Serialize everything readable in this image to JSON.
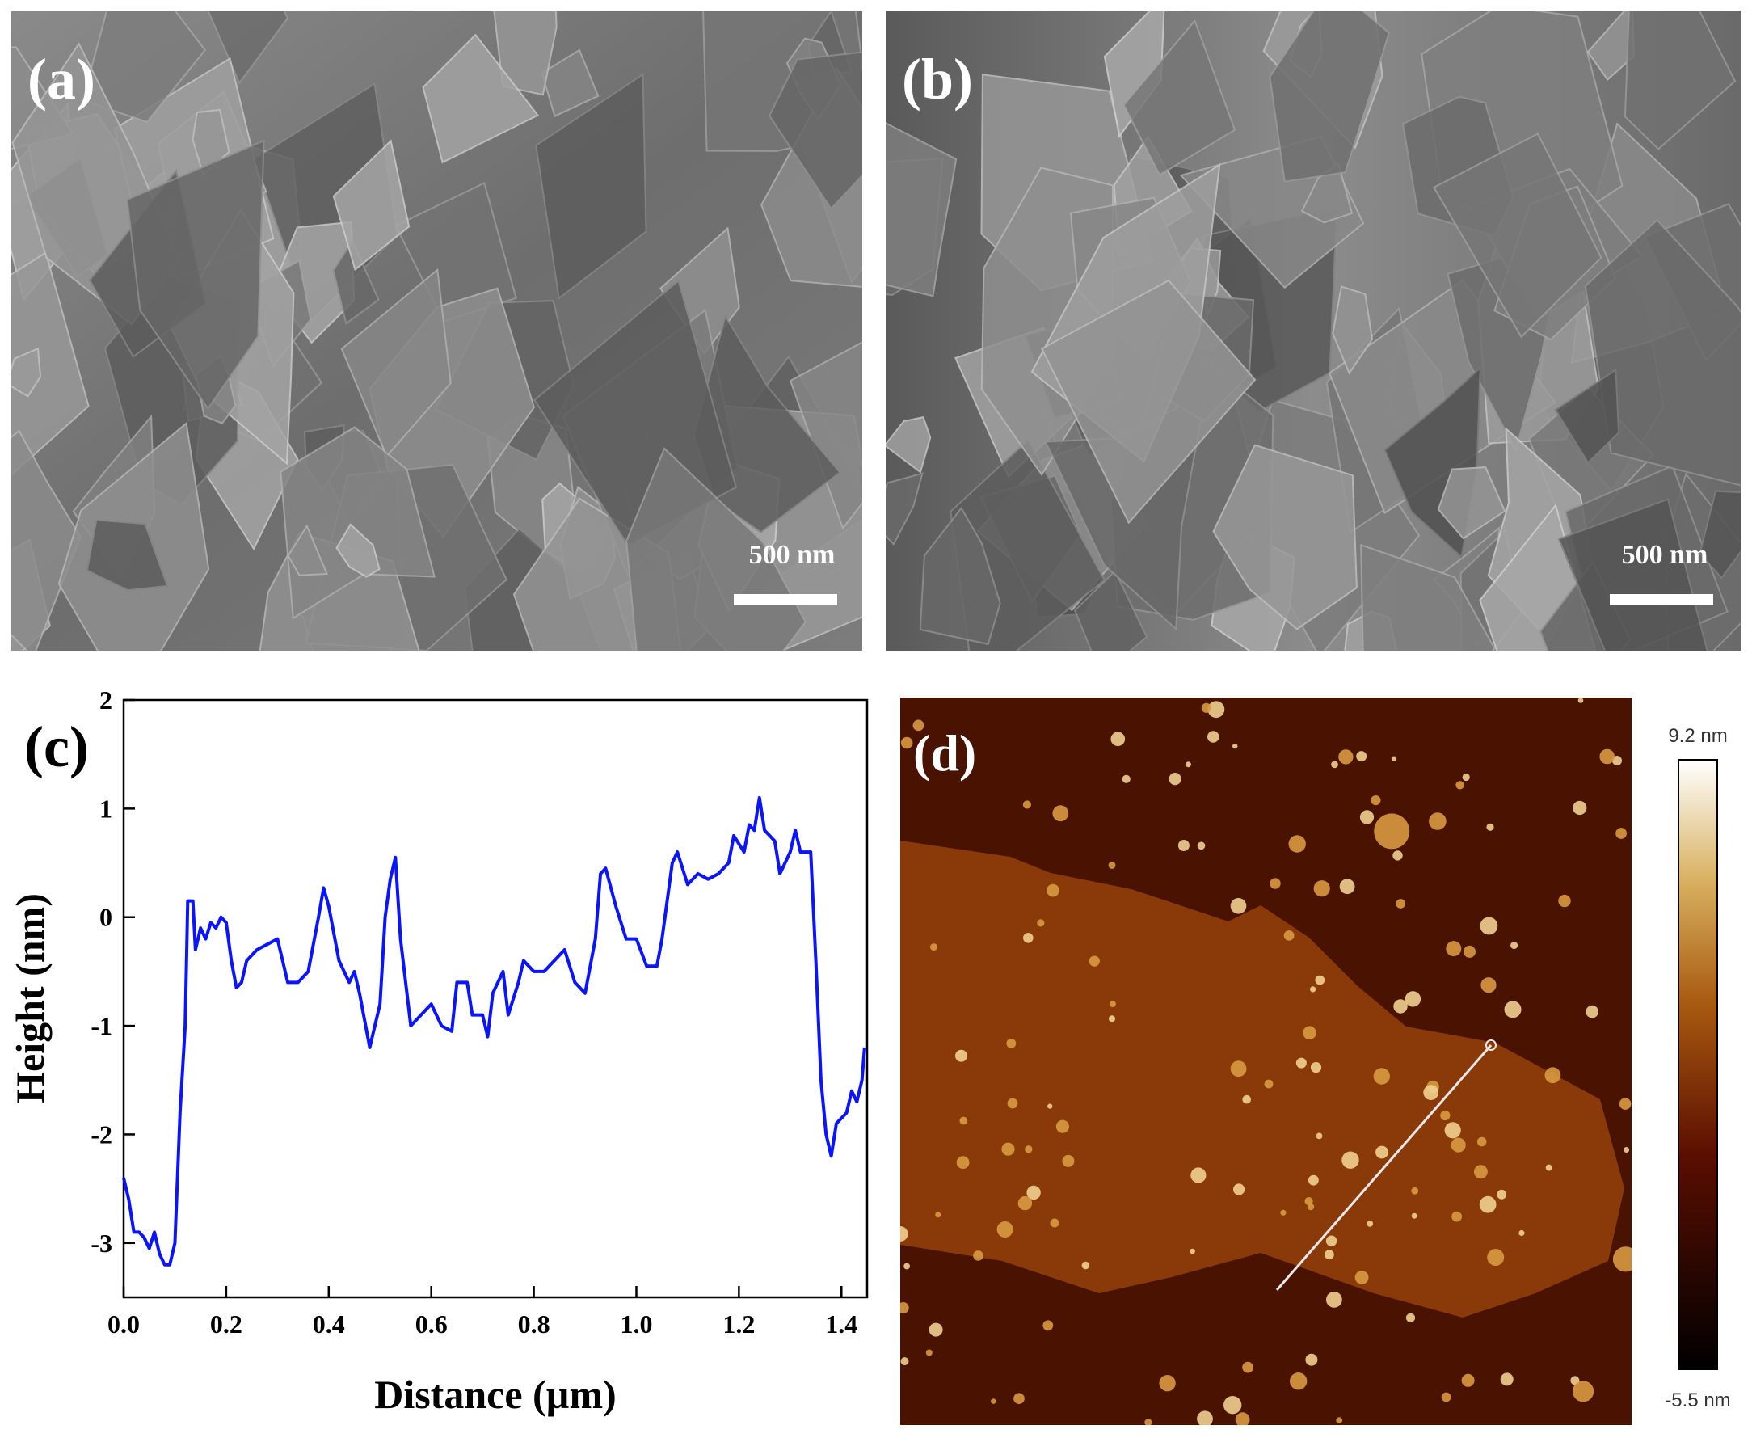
{
  "panels": {
    "a": {
      "label": "(a)",
      "scale_bar": "500 nm"
    },
    "b": {
      "label": "(b)",
      "scale_bar": "500 nm"
    },
    "d": {
      "label": "(d)",
      "colorbar_max": "9.2 nm",
      "colorbar_min": "-5.5 nm"
    }
  },
  "chart_data": {
    "type": "line",
    "panel_label": "(c)",
    "x_label": "Distance (µm)",
    "y_label": "Height (nm)",
    "xlim": [
      0,
      1.45
    ],
    "ylim": [
      -3.5,
      2
    ],
    "xticks": [
      {
        "value": 0,
        "label": "0.0"
      },
      0.2,
      0.4,
      0.6,
      0.8,
      {
        "value": 1,
        "label": "1.0"
      },
      1.2,
      1.4
    ],
    "yticks": [
      -3,
      -2,
      -1,
      0,
      1,
      2
    ],
    "color": "#0a14ff",
    "x": [
      0,
      0.01,
      0.02,
      0.03,
      0.04,
      0.05,
      0.06,
      0.07,
      0.08,
      0.09,
      0.1,
      0.11,
      0.12,
      0.125,
      0.135,
      0.14,
      0.15,
      0.16,
      0.17,
      0.18,
      0.19,
      0.2,
      0.21,
      0.22,
      0.23,
      0.24,
      0.26,
      0.28,
      0.3,
      0.32,
      0.34,
      0.36,
      0.38,
      0.39,
      0.4,
      0.42,
      0.44,
      0.45,
      0.46,
      0.48,
      0.5,
      0.51,
      0.52,
      0.53,
      0.54,
      0.56,
      0.58,
      0.6,
      0.62,
      0.64,
      0.65,
      0.67,
      0.68,
      0.7,
      0.71,
      0.72,
      0.74,
      0.75,
      0.77,
      0.78,
      0.8,
      0.82,
      0.84,
      0.86,
      0.88,
      0.9,
      0.92,
      0.93,
      0.94,
      0.96,
      0.98,
      1,
      1.02,
      1.04,
      1.05,
      1.07,
      1.08,
      1.1,
      1.12,
      1.14,
      1.16,
      1.18,
      1.19,
      1.21,
      1.22,
      1.23,
      1.24,
      1.25,
      1.27,
      1.28,
      1.3,
      1.31,
      1.32,
      1.34,
      1.35,
      1.36,
      1.37,
      1.38,
      1.39,
      1.41,
      1.42,
      1.43,
      1.44,
      1.445
    ],
    "values": [
      -2.4,
      -2.6,
      -2.9,
      -2.9,
      -2.95,
      -3.05,
      -2.9,
      -3.1,
      -3.2,
      -3.2,
      -3.0,
      -1.8,
      -1.0,
      0.15,
      0.15,
      -0.3,
      -0.1,
      -0.2,
      -0.05,
      -0.1,
      0.0,
      -0.05,
      -0.4,
      -0.65,
      -0.6,
      -0.4,
      -0.3,
      -0.25,
      -0.2,
      -0.6,
      -0.6,
      -0.5,
      0.0,
      0.27,
      0.1,
      -0.4,
      -0.6,
      -0.5,
      -0.7,
      -1.2,
      -0.8,
      0.0,
      0.35,
      0.55,
      -0.2,
      -1.0,
      -0.9,
      -0.8,
      -1.0,
      -1.05,
      -0.6,
      -0.6,
      -0.9,
      -0.9,
      -1.1,
      -0.7,
      -0.5,
      -0.9,
      -0.6,
      -0.4,
      -0.5,
      -0.5,
      -0.4,
      -0.3,
      -0.6,
      -0.7,
      -0.2,
      0.4,
      0.45,
      0.1,
      -0.2,
      -0.2,
      -0.45,
      -0.45,
      -0.2,
      0.5,
      0.6,
      0.3,
      0.4,
      0.35,
      0.4,
      0.5,
      0.75,
      0.6,
      0.85,
      0.8,
      1.1,
      0.8,
      0.7,
      0.4,
      0.6,
      0.8,
      0.6,
      0.6,
      -0.4,
      -1.5,
      -2.0,
      -2.2,
      -1.9,
      -1.8,
      -1.6,
      -1.7,
      -1.5,
      -1.2
    ]
  }
}
